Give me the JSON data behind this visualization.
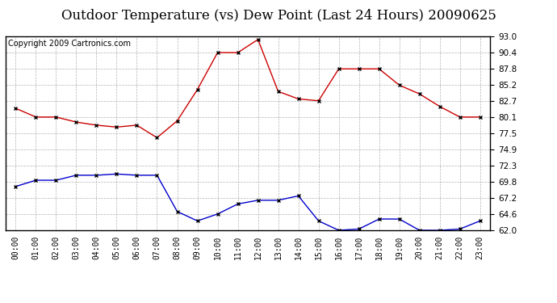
{
  "title": "Outdoor Temperature (vs) Dew Point (Last 24 Hours) 20090625",
  "copyright": "Copyright 2009 Cartronics.com",
  "hours": [
    "00:00",
    "01:00",
    "02:00",
    "03:00",
    "04:00",
    "05:00",
    "06:00",
    "07:00",
    "08:00",
    "09:00",
    "10:00",
    "11:00",
    "12:00",
    "13:00",
    "14:00",
    "15:00",
    "16:00",
    "17:00",
    "18:00",
    "19:00",
    "20:00",
    "21:00",
    "22:00",
    "23:00"
  ],
  "temp": [
    81.5,
    80.1,
    80.1,
    79.3,
    78.8,
    78.5,
    78.8,
    76.8,
    79.5,
    84.5,
    90.4,
    90.4,
    92.5,
    84.2,
    83.0,
    82.7,
    87.8,
    87.8,
    87.8,
    85.2,
    83.8,
    81.8,
    80.1,
    80.1
  ],
  "dew": [
    69.0,
    70.0,
    70.0,
    70.8,
    70.8,
    71.0,
    70.8,
    70.8,
    65.0,
    63.5,
    64.6,
    66.2,
    66.8,
    66.8,
    67.5,
    63.5,
    62.0,
    62.2,
    63.8,
    63.8,
    62.0,
    62.0,
    62.2,
    63.5
  ],
  "temp_color": "#cc0000",
  "dew_color": "#0000cc",
  "bg_color": "#ffffff",
  "grid_color": "#aaaaaa",
  "ylim": [
    62.0,
    93.0
  ],
  "yticks": [
    62.0,
    64.6,
    67.2,
    69.8,
    72.3,
    74.9,
    77.5,
    80.1,
    82.7,
    85.2,
    87.8,
    90.4,
    93.0
  ],
  "title_fontsize": 12,
  "copyright_fontsize": 7
}
